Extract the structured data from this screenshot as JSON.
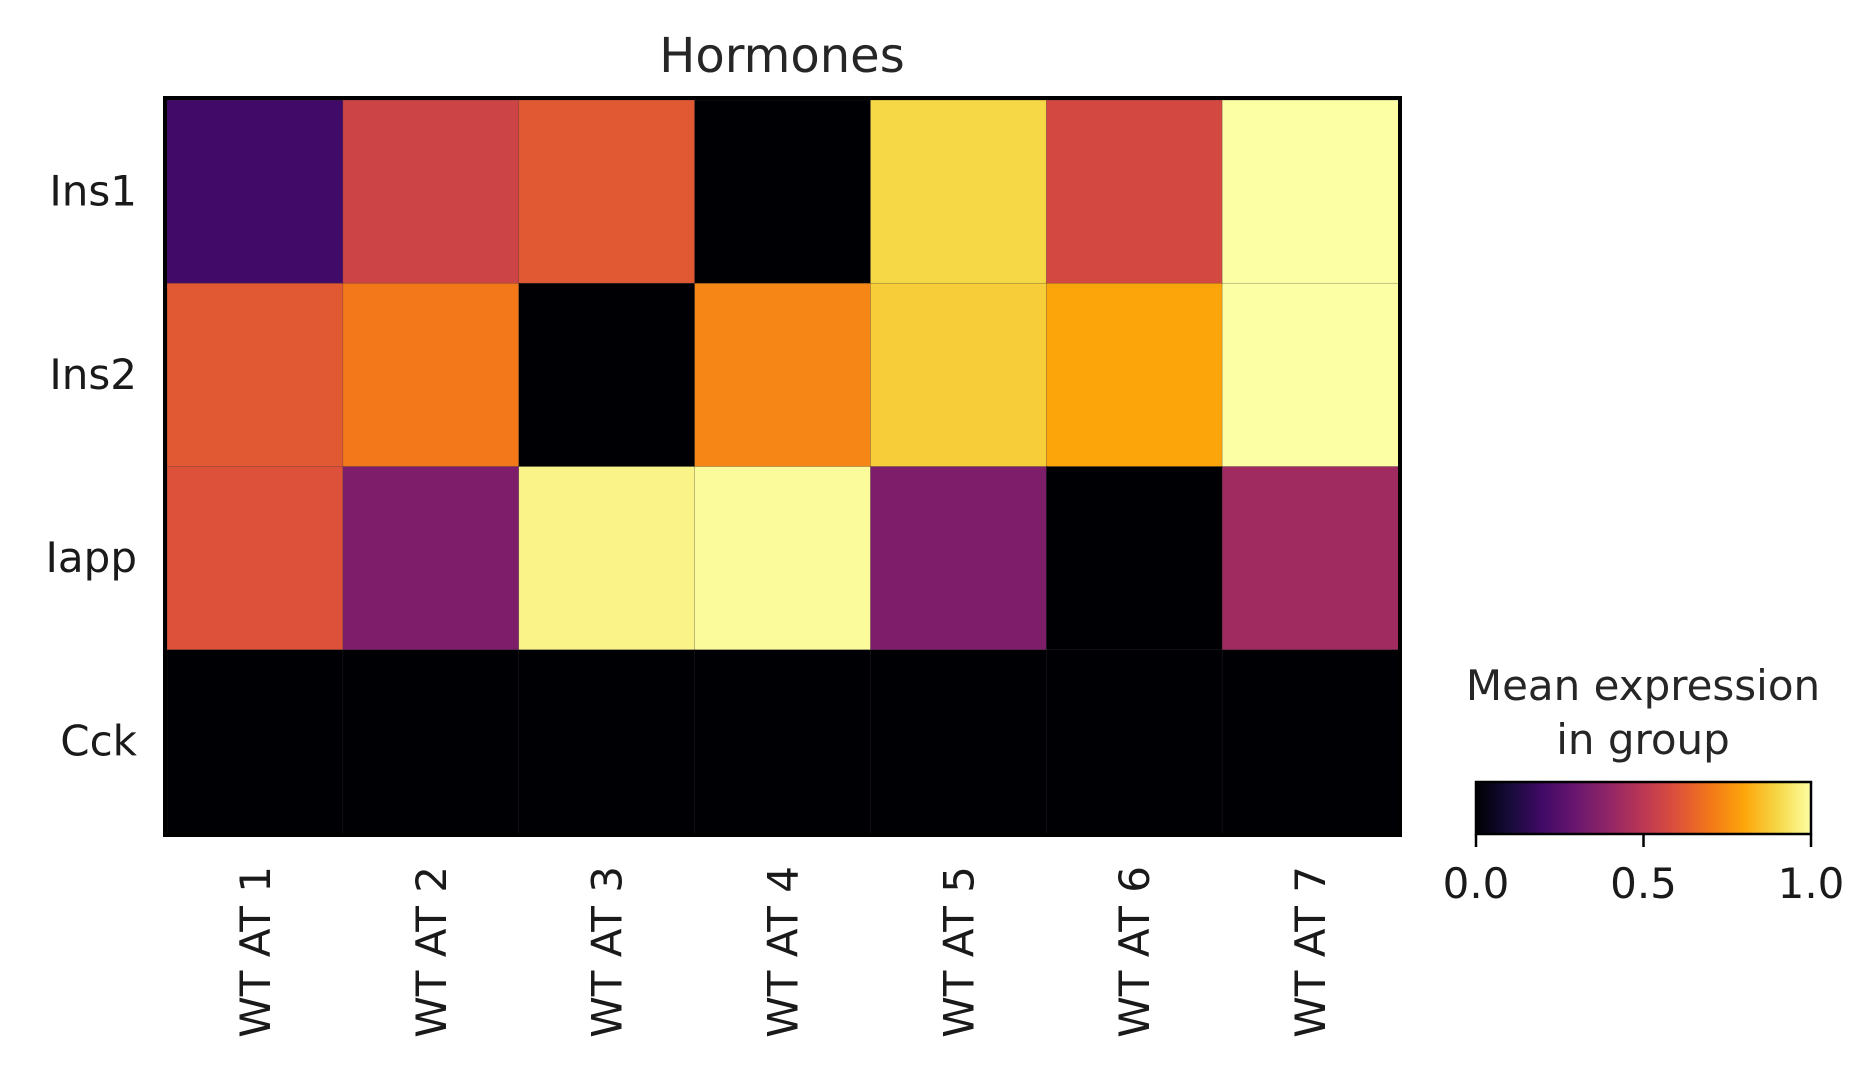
{
  "chart_data": {
    "type": "heatmap",
    "title": "Hormones",
    "rows": [
      "Ins1",
      "Ins2",
      "Iapp",
      "Cck"
    ],
    "columns": [
      "WT AT 1",
      "WT AT 2",
      "WT AT 3",
      "WT AT 4",
      "WT AT 5",
      "WT AT 6",
      "WT AT 7"
    ],
    "values": [
      [
        0.2,
        0.55,
        0.62,
        0.0,
        0.9,
        0.57,
        1.0
      ],
      [
        0.62,
        0.7,
        0.0,
        0.73,
        0.88,
        0.8,
        1.0
      ],
      [
        0.6,
        0.35,
        0.97,
        0.99,
        0.35,
        0.0,
        0.43
      ],
      [
        0.0,
        0.0,
        0.0,
        0.0,
        0.0,
        0.0,
        0.0
      ]
    ],
    "colormap": "inferno",
    "colorbar": {
      "label_line1": "Mean expression",
      "label_line2": "in group",
      "range": [
        0,
        1
      ],
      "ticks": [
        "0.0",
        "0.5",
        "1.0"
      ]
    }
  }
}
